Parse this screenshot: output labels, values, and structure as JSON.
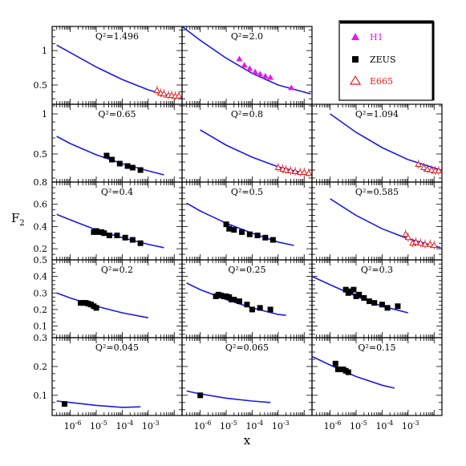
{
  "chart_data": {
    "type": "scatter",
    "xlabel": "x",
    "ylabel": "F",
    "ylabel_sub": "2",
    "xscale": "log",
    "xlim": [
      2e-07,
      0.02
    ],
    "x_ticks": [
      {
        "value": 1e-06,
        "base": "10",
        "exp": "-6"
      },
      {
        "value": 1e-05,
        "base": "10",
        "exp": "-5"
      },
      {
        "value": 0.0001,
        "base": "10",
        "exp": "-4"
      },
      {
        "value": 0.001,
        "base": "10",
        "exp": "-3"
      }
    ],
    "legend": {
      "position": "top-right",
      "entries": [
        {
          "name": "H1",
          "marker": "filled-triangle",
          "color": "#e619e6"
        },
        {
          "name": "ZEUS",
          "marker": "filled-square",
          "color": "#000000"
        },
        {
          "name": "E665",
          "marker": "open-triangle",
          "color": "#e61919"
        }
      ]
    },
    "rows": [
      {
        "ylim": [
          0.22,
          1.35
        ],
        "yticks": [
          {
            "v": 0.5,
            "t": "0.5"
          },
          {
            "v": 1,
            "t": "1"
          }
        ]
      },
      {
        "ylim": [
          0.15,
          1.12
        ],
        "yticks": [
          {
            "v": 0.5,
            "t": "0.5"
          },
          {
            "v": 1,
            "t": "1"
          }
        ]
      },
      {
        "ylim": [
          0.1,
          0.8
        ],
        "yticks": [
          {
            "v": 0.2,
            "t": "0.2"
          },
          {
            "v": 0.4,
            "t": "0.4"
          },
          {
            "v": 0.6,
            "t": "0.6"
          },
          {
            "v": 0.8,
            "t": "0.8"
          }
        ]
      },
      {
        "ylim": [
          0.03,
          0.5
        ],
        "yticks": [
          {
            "v": 0.1,
            "t": "0.1"
          },
          {
            "v": 0.2,
            "t": "0.2"
          },
          {
            "v": 0.3,
            "t": "0.3"
          },
          {
            "v": 0.4,
            "t": "0.4"
          },
          {
            "v": 0.5,
            "t": "0.5"
          }
        ]
      },
      {
        "ylim": [
          0.03,
          0.3
        ],
        "yticks": [
          {
            "v": 0.1,
            "t": "0.1"
          },
          {
            "v": 0.2,
            "t": "0.2"
          },
          {
            "v": 0.3,
            "t": "0.3"
          }
        ]
      }
    ],
    "panels": [
      {
        "row": 0,
        "col": 0,
        "label": "Q²=1.496",
        "curve": [
          [
            3e-07,
            1.08
          ],
          [
            1e-06,
            0.97
          ],
          [
            1e-05,
            0.76
          ],
          [
            0.0001,
            0.58
          ],
          [
            0.001,
            0.43
          ],
          [
            0.018,
            0.3
          ]
        ],
        "H1": [],
        "ZEUS": [],
        "E665": [
          [
            0.0022,
            0.42
          ],
          [
            0.003,
            0.38
          ],
          [
            0.004,
            0.37
          ],
          [
            0.006,
            0.35
          ],
          [
            0.008,
            0.35
          ],
          [
            0.011,
            0.34
          ],
          [
            0.015,
            0.34
          ]
        ]
      },
      {
        "row": 0,
        "col": 1,
        "label": "Q²=2.0",
        "curve": [
          [
            2e-07,
            1.35
          ],
          [
            1e-06,
            1.15
          ],
          [
            1e-05,
            0.89
          ],
          [
            0.0001,
            0.67
          ],
          [
            0.001,
            0.5
          ],
          [
            0.018,
            0.37
          ]
        ],
        "H1": [
          [
            3.2e-05,
            0.88
          ],
          [
            5e-05,
            0.79
          ],
          [
            8e-05,
            0.74
          ],
          [
            0.00013,
            0.69
          ],
          [
            0.0002,
            0.66
          ],
          [
            0.00032,
            0.63
          ],
          [
            0.0005,
            0.61
          ],
          [
            0.0032,
            0.46
          ]
        ],
        "ZEUS": [],
        "E665": []
      },
      {
        "row": 1,
        "col": 0,
        "label": "Q²=0.65",
        "curve": [
          [
            3e-07,
            0.72
          ],
          [
            1e-06,
            0.63
          ],
          [
            1e-05,
            0.49
          ],
          [
            0.0001,
            0.38
          ],
          [
            0.001,
            0.29
          ],
          [
            0.004,
            0.24
          ]
        ],
        "H1": [],
        "ZEUS": [
          [
            2.5e-05,
            0.48
          ],
          [
            4e-05,
            0.43
          ],
          [
            8e-05,
            0.38
          ],
          [
            0.00016,
            0.35
          ],
          [
            0.00025,
            0.33
          ],
          [
            0.0005,
            0.3
          ]
        ],
        "E665": []
      },
      {
        "row": 1,
        "col": 1,
        "label": "Q²=0.8",
        "curve": [
          [
            1e-06,
            0.8
          ],
          [
            1e-05,
            0.61
          ],
          [
            0.0001,
            0.46
          ],
          [
            0.001,
            0.34
          ],
          [
            0.018,
            0.24
          ]
        ],
        "H1": [],
        "ZEUS": [],
        "E665": [
          [
            0.001,
            0.33
          ],
          [
            0.0015,
            0.31
          ],
          [
            0.002,
            0.3
          ],
          [
            0.003,
            0.29
          ],
          [
            0.0045,
            0.28
          ],
          [
            0.007,
            0.27
          ],
          [
            0.01,
            0.27
          ],
          [
            0.015,
            0.26
          ]
        ]
      },
      {
        "row": 1,
        "col": 2,
        "label": "Q²=1.094",
        "curve": [
          [
            1e-06,
            1.0
          ],
          [
            1e-05,
            0.77
          ],
          [
            0.0001,
            0.58
          ],
          [
            0.001,
            0.43
          ],
          [
            0.018,
            0.3
          ]
        ],
        "H1": [],
        "ZEUS": [],
        "E665": [
          [
            0.0025,
            0.37
          ],
          [
            0.004,
            0.33
          ],
          [
            0.0055,
            0.31
          ],
          [
            0.008,
            0.3
          ],
          [
            0.011,
            0.29
          ],
          [
            0.015,
            0.29
          ]
        ]
      },
      {
        "row": 2,
        "col": 0,
        "label": "Q²=0.4",
        "curve": [
          [
            3e-07,
            0.51
          ],
          [
            1e-06,
            0.46
          ],
          [
            1e-05,
            0.37
          ],
          [
            0.0001,
            0.3
          ],
          [
            0.001,
            0.24
          ],
          [
            0.004,
            0.21
          ]
        ],
        "H1": [],
        "ZEUS": [
          [
            8e-06,
            0.35
          ],
          [
            1e-05,
            0.36
          ],
          [
            1.3e-05,
            0.35
          ],
          [
            1.6e-05,
            0.35
          ],
          [
            2e-05,
            0.34
          ],
          [
            3.2e-05,
            0.32
          ],
          [
            6.3e-05,
            0.32
          ],
          [
            0.00013,
            0.3
          ],
          [
            0.00025,
            0.28
          ],
          [
            0.0005,
            0.25
          ]
        ],
        "E665": []
      },
      {
        "row": 2,
        "col": 1,
        "label": "Q²=0.5",
        "curve": [
          [
            3e-07,
            0.61
          ],
          [
            1e-06,
            0.54
          ],
          [
            1e-05,
            0.43
          ],
          [
            0.0001,
            0.34
          ],
          [
            0.001,
            0.26
          ],
          [
            0.004,
            0.23
          ]
        ],
        "H1": [],
        "ZEUS": [
          [
            1e-05,
            0.42
          ],
          [
            1.3e-05,
            0.38
          ],
          [
            2e-05,
            0.37
          ],
          [
            4e-05,
            0.35
          ],
          [
            8e-05,
            0.33
          ],
          [
            0.00016,
            0.32
          ],
          [
            0.00032,
            0.3
          ],
          [
            0.00063,
            0.28
          ]
        ],
        "E665": []
      },
      {
        "row": 2,
        "col": 2,
        "label": "Q²=0.585",
        "curve": [
          [
            1e-06,
            0.65
          ],
          [
            1e-05,
            0.5
          ],
          [
            0.0001,
            0.38
          ],
          [
            0.001,
            0.29
          ],
          [
            0.018,
            0.21
          ]
        ],
        "H1": [],
        "ZEUS": [],
        "E665": [
          [
            0.0008,
            0.33
          ],
          [
            0.001,
            0.3
          ],
          [
            0.0015,
            0.25
          ],
          [
            0.002,
            0.26
          ],
          [
            0.003,
            0.25
          ],
          [
            0.0045,
            0.24
          ],
          [
            0.007,
            0.24
          ],
          [
            0.01,
            0.23
          ]
        ]
      },
      {
        "row": 3,
        "col": 0,
        "label": "Q²=0.2",
        "curve": [
          [
            3e-07,
            0.3
          ],
          [
            1e-06,
            0.27
          ],
          [
            1e-05,
            0.22
          ],
          [
            0.0001,
            0.18
          ],
          [
            0.001,
            0.15
          ]
        ],
        "H1": [],
        "ZEUS": [
          [
            2.5e-06,
            0.24
          ],
          [
            3.2e-06,
            0.24
          ],
          [
            4e-06,
            0.24
          ],
          [
            5e-06,
            0.235
          ],
          [
            6.3e-06,
            0.23
          ],
          [
            8e-06,
            0.22
          ],
          [
            1e-05,
            0.21
          ]
        ],
        "E665": []
      },
      {
        "row": 3,
        "col": 1,
        "label": "Q²=0.25",
        "curve": [
          [
            3e-07,
            0.36
          ],
          [
            1e-06,
            0.32
          ],
          [
            1e-05,
            0.26
          ],
          [
            0.0001,
            0.21
          ],
          [
            0.001,
            0.17
          ],
          [
            0.002,
            0.165
          ]
        ],
        "H1": [],
        "ZEUS": [
          [
            4e-06,
            0.28
          ],
          [
            5e-06,
            0.29
          ],
          [
            6.3e-06,
            0.285
          ],
          [
            8e-06,
            0.28
          ],
          [
            1e-05,
            0.28
          ],
          [
            1.3e-05,
            0.275
          ],
          [
            1.6e-05,
            0.26
          ],
          [
            2e-05,
            0.26
          ],
          [
            3.2e-05,
            0.25
          ],
          [
            6.3e-05,
            0.23
          ],
          [
            0.0001,
            0.2
          ],
          [
            0.0002,
            0.21
          ],
          [
            0.0005,
            0.2
          ]
        ],
        "E665": []
      },
      {
        "row": 3,
        "col": 2,
        "label": "Q²=0.3",
        "curve": [
          [
            2e-07,
            0.4
          ],
          [
            1e-06,
            0.35
          ],
          [
            1e-05,
            0.28
          ],
          [
            0.0001,
            0.22
          ],
          [
            0.001,
            0.18
          ]
        ],
        "H1": [],
        "ZEUS": [
          [
            4e-06,
            0.32
          ],
          [
            5e-06,
            0.3
          ],
          [
            6e-06,
            0.31
          ],
          [
            8e-06,
            0.32
          ],
          [
            1e-05,
            0.28
          ],
          [
            1.3e-05,
            0.29
          ],
          [
            2e-05,
            0.27
          ],
          [
            3.2e-05,
            0.25
          ],
          [
            5e-05,
            0.24
          ],
          [
            0.0001,
            0.23
          ],
          [
            0.00016,
            0.21
          ],
          [
            0.0004,
            0.22
          ]
        ],
        "E665": []
      },
      {
        "row": 4,
        "col": 0,
        "label": "Q²=0.045",
        "curve": [
          [
            3e-07,
            0.08
          ],
          [
            1e-06,
            0.075
          ],
          [
            1e-05,
            0.065
          ],
          [
            0.0001,
            0.058
          ],
          [
            0.0005,
            0.06
          ]
        ],
        "H1": [],
        "ZEUS": [
          [
            6e-07,
            0.07
          ]
        ],
        "E665": []
      },
      {
        "row": 4,
        "col": 1,
        "label": "Q²=0.065",
        "curve": [
          [
            3e-07,
            0.115
          ],
          [
            1e-06,
            0.105
          ],
          [
            1e-05,
            0.09
          ],
          [
            0.0001,
            0.08
          ],
          [
            0.0005,
            0.075
          ]
        ],
        "H1": [],
        "ZEUS": [
          [
            1e-06,
            0.1
          ]
        ],
        "E665": []
      },
      {
        "row": 4,
        "col": 2,
        "label": "Q²=0.15",
        "curve": [
          [
            2e-07,
            0.235
          ],
          [
            1e-06,
            0.205
          ],
          [
            1e-05,
            0.165
          ],
          [
            0.0001,
            0.135
          ],
          [
            0.0003,
            0.125
          ]
        ],
        "H1": [],
        "ZEUS": [
          [
            1.6e-06,
            0.21
          ],
          [
            2e-06,
            0.19
          ],
          [
            2.5e-06,
            0.19
          ],
          [
            3.2e-06,
            0.19
          ],
          [
            4e-06,
            0.185
          ],
          [
            5e-06,
            0.18
          ]
        ],
        "E665": []
      }
    ]
  }
}
